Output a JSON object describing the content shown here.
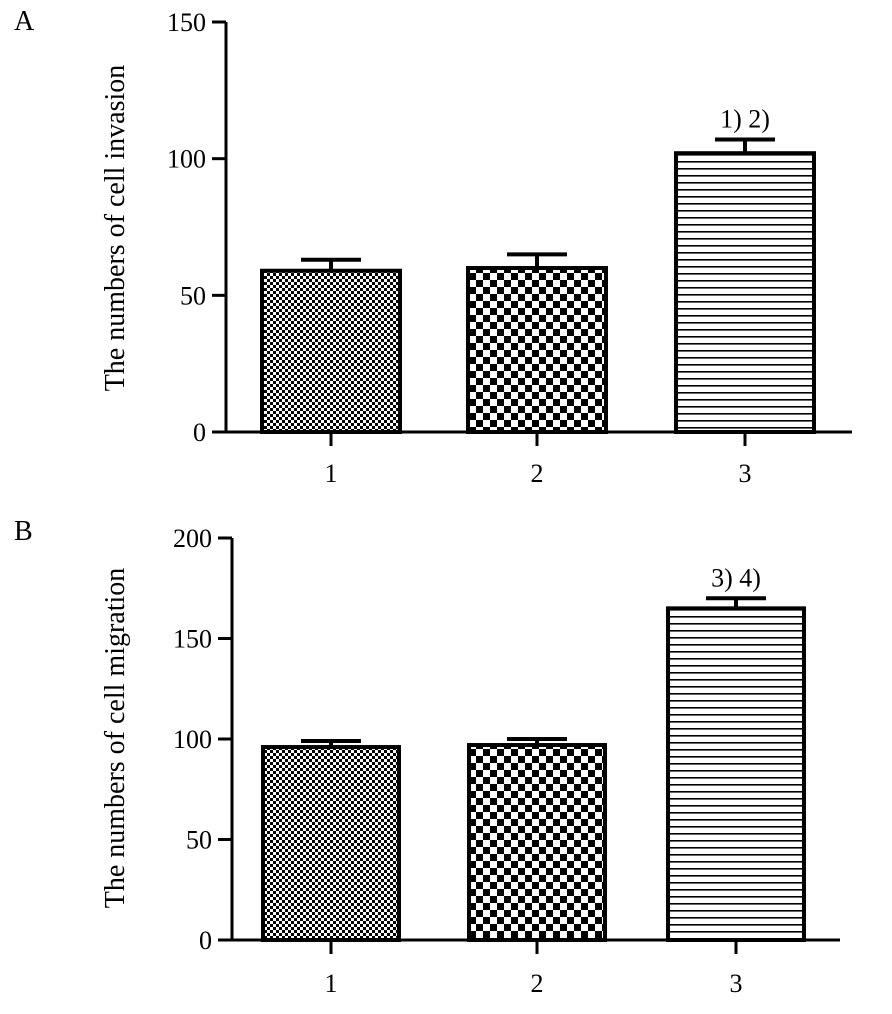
{
  "chart_data": [
    {
      "panel": "A",
      "type": "bar",
      "title": "",
      "xlabel": "",
      "ylabel": "The numbers of cell invasion",
      "ylim": [
        0,
        150
      ],
      "yticks": [
        0,
        50,
        100,
        150
      ],
      "categories": [
        "1",
        "2",
        "3"
      ],
      "values": [
        59,
        60,
        102
      ],
      "errors": [
        4,
        5,
        5
      ],
      "annotations": [
        {
          "category": "3",
          "text": "1) 2)"
        }
      ],
      "patterns": [
        "fine-checker",
        "checker",
        "horizontal-lines"
      ]
    },
    {
      "panel": "B",
      "type": "bar",
      "title": "",
      "xlabel": "",
      "ylabel": "The numbers of cell migration",
      "ylim": [
        0,
        200
      ],
      "yticks": [
        0,
        50,
        100,
        150,
        200
      ],
      "categories": [
        "1",
        "2",
        "3"
      ],
      "values": [
        96,
        97,
        165
      ],
      "errors": [
        3,
        3,
        5
      ],
      "annotations": [
        {
          "category": "3",
          "text": "3) 4)"
        }
      ],
      "patterns": [
        "fine-checker",
        "checker",
        "horizontal-lines"
      ]
    }
  ]
}
